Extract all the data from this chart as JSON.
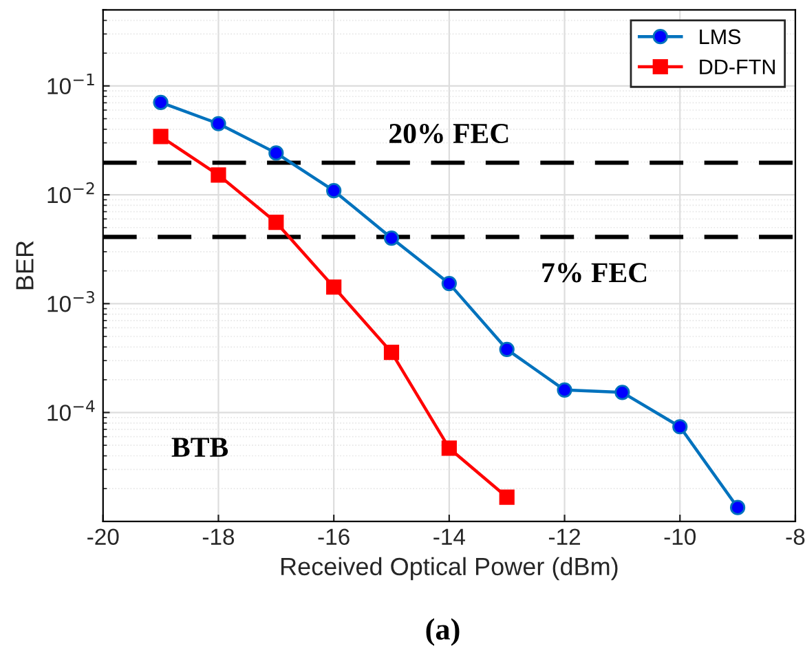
{
  "chart_data": {
    "type": "line",
    "xlabel": "Received Optical Power (dBm)",
    "ylabel": "BER",
    "xlim": [
      -20,
      -8
    ],
    "xticks": [
      -20,
      -18,
      -16,
      -14,
      -12,
      -10,
      -8
    ],
    "ylim": [
      1e-05,
      0.5
    ],
    "yticks": [
      {
        "value": 0.0001,
        "label": "10$^{−4}$"
      },
      {
        "value": 0.001,
        "label": "10$^{−3}$"
      },
      {
        "value": 0.01,
        "label": "10$^{−2}$"
      },
      {
        "value": 0.1,
        "label": "10$^{−1}$"
      }
    ],
    "log": "y",
    "grid": true,
    "legend": "top right",
    "line_style": "solid",
    "x": [
      -19,
      -18,
      -17,
      -16,
      -15,
      -14,
      -13,
      -12,
      -11,
      -10,
      -9
    ],
    "series": [
      {
        "name": "LMS",
        "color": "#0072bd",
        "marker": "circle",
        "values": [
          0.0705,
          0.045,
          0.0242,
          0.0109,
          0.004,
          0.00153,
          0.00038,
          0.000161,
          0.000153,
          7.4e-05,
          1.34e-05
        ]
      },
      {
        "name": "DD-FTN",
        "color": "#ff0000",
        "marker": "square",
        "x": [
          -19,
          -18,
          -17,
          -16,
          -15,
          -14,
          -13
        ],
        "values": [
          0.0343,
          0.0152,
          0.00558,
          0.00142,
          0.000357,
          4.7e-05,
          1.67e-05
        ]
      }
    ],
    "ref_lines": [
      {
        "axis": "y",
        "value": 0.0197,
        "label": "20% FEC",
        "color": "#000000",
        "line_style": "dashed"
      },
      {
        "axis": "y",
        "value": 0.0041,
        "label": "7% FEC",
        "color": "#000000",
        "line_style": "dashed"
      }
    ],
    "annotations": [
      "BTB",
      "(a)"
    ]
  }
}
